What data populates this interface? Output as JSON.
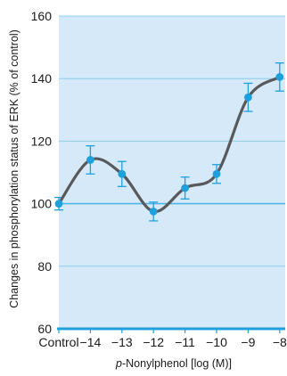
{
  "chart_data": {
    "type": "line",
    "xlabel_prefix": "p",
    "xlabel_rest": "-Nonylphenol [log (M)]",
    "ylabel": "Changes in phosphorylation status of ERK (% of control)",
    "categories": [
      "Control",
      "−14",
      "−13",
      "−12",
      "−11",
      "−10",
      "−9",
      "−8"
    ],
    "values": [
      100,
      114,
      109.5,
      97.5,
      105,
      109.5,
      134,
      140.5
    ],
    "errors": [
      2,
      4.5,
      4,
      3,
      3.5,
      3,
      4.5,
      4.5
    ],
    "ylim": [
      60,
      160
    ],
    "yticks": [
      60,
      80,
      100,
      120,
      140,
      160
    ],
    "reference_line": 100,
    "colors": {
      "background": "#d6e9f8",
      "grid": "#4fb3e6",
      "line": "#58595b",
      "point": "#1ea0dc",
      "error": "#1ea0dc",
      "axis": "#1ea0dc"
    }
  }
}
